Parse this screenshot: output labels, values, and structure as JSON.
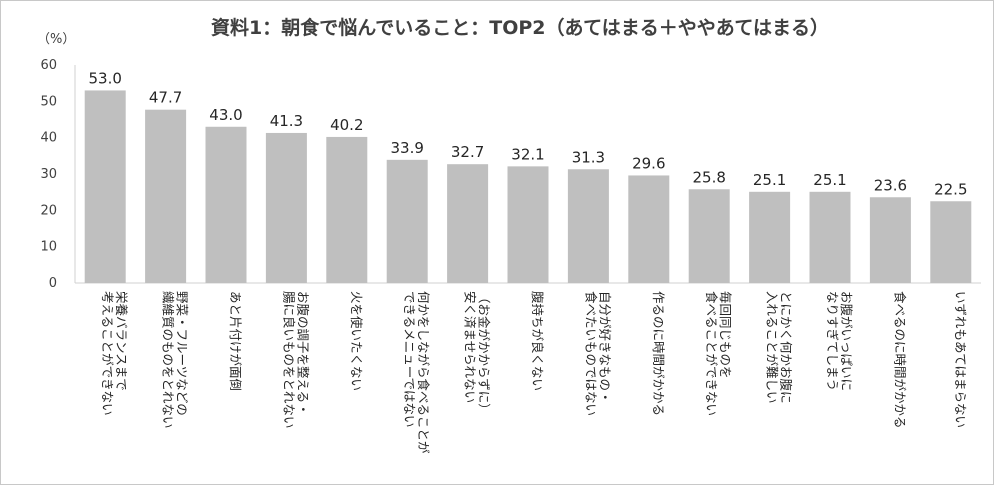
{
  "chart_data": {
    "type": "bar",
    "title": "資料1：朝食で悩んでいること：TOP2（あてはまる＋ややあてはまる）",
    "ylabel": "（%）",
    "ylim": [
      0,
      60
    ],
    "yticks": [
      0,
      10,
      20,
      30,
      40,
      50,
      60
    ],
    "grid": false,
    "categories": [
      [
        "栄養バランスまで",
        "考えることができない"
      ],
      [
        "野菜・フルーツなどの",
        "繊維質のものをとれない"
      ],
      [
        "あと片付けが面倒"
      ],
      [
        "お腹の調子を整える・",
        "腸に良いものをとれない"
      ],
      [
        "火を使いたくない"
      ],
      [
        "何かをしながら食べることが",
        "できるメニューではない"
      ],
      [
        "（お金がかからずに）",
        "安く済ませられない"
      ],
      [
        "腹持ちが良くない"
      ],
      [
        "自分が好きなもの・",
        "食べたいものではない"
      ],
      [
        "作るのに時間がかかる"
      ],
      [
        "毎回同じものを",
        "食べることができない"
      ],
      [
        "とにかく何かお腹に",
        "入れることが難しい"
      ],
      [
        "お腹がいっぱいに",
        "なりすぎてしまう"
      ],
      [
        "食べるのに時間がかかる"
      ],
      [
        "いずれもあてはまらない"
      ]
    ],
    "values": [
      53.0,
      47.7,
      43.0,
      41.3,
      40.2,
      33.9,
      32.7,
      32.1,
      31.3,
      29.6,
      25.8,
      25.1,
      25.1,
      23.6,
      22.5
    ],
    "value_labels": [
      "53.0",
      "47.7",
      "43.0",
      "41.3",
      "40.2",
      "33.9",
      "32.7",
      "32.1",
      "31.3",
      "29.6",
      "25.8",
      "25.1",
      "25.1",
      "23.6",
      "22.5"
    ],
    "bar_color": "#bfbfbf"
  }
}
